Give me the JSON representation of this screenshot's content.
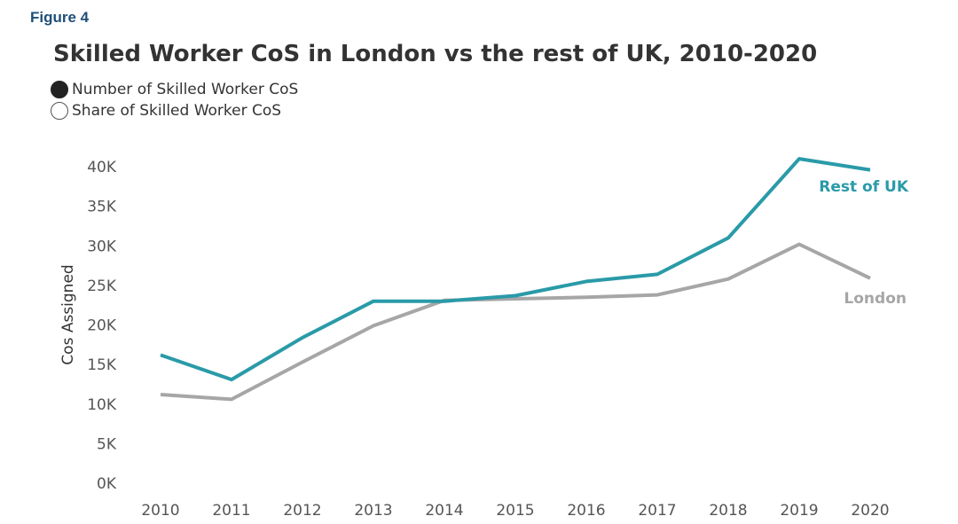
{
  "figure_label": "Figure 4",
  "toggles": [
    {
      "label": "Number of Skilled Worker CoS",
      "selected": true
    },
    {
      "label": "Share of Skilled Worker CoS",
      "selected": false
    }
  ],
  "chart_data": {
    "type": "line",
    "title": "Skilled Worker CoS in London vs the rest of UK, 2010-2020",
    "xlabel": "",
    "ylabel": "Cos Assigned",
    "x": [
      "2010",
      "2011",
      "2012",
      "2013",
      "2014",
      "2015",
      "2016",
      "2017",
      "2018",
      "2019",
      "2020"
    ],
    "y_ticks": [
      {
        "value": 0,
        "label": "0K"
      },
      {
        "value": 5000,
        "label": "5K"
      },
      {
        "value": 10000,
        "label": "10K"
      },
      {
        "value": 15000,
        "label": "15K"
      },
      {
        "value": 20000,
        "label": "20K"
      },
      {
        "value": 25000,
        "label": "25K"
      },
      {
        "value": 30000,
        "label": "30K"
      },
      {
        "value": 35000,
        "label": "35K"
      },
      {
        "value": 40000,
        "label": "40K"
      }
    ],
    "ylim": [
      0,
      40000
    ],
    "grid": false,
    "series": [
      {
        "name": "Rest of UK",
        "color": "#2a9aa8",
        "values": [
          16200,
          13100,
          18400,
          23000,
          23000,
          23700,
          25500,
          26400,
          31000,
          41000,
          39600
        ]
      },
      {
        "name": "London",
        "color": "#a6a6a6",
        "values": [
          11200,
          10600,
          15300,
          19900,
          23100,
          23300,
          23500,
          23800,
          25800,
          30200,
          25900
        ]
      }
    ]
  }
}
